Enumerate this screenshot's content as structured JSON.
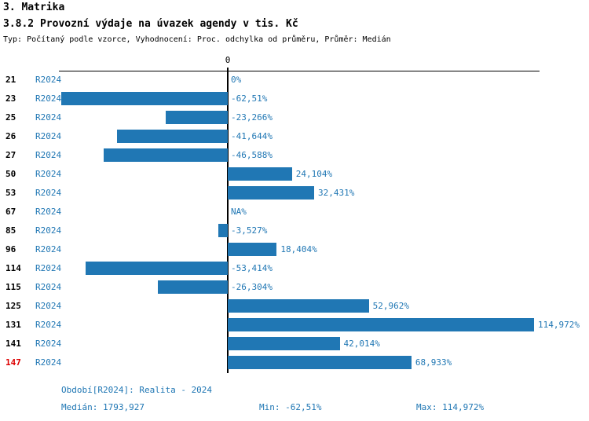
{
  "header": {
    "section": "3. Matrika",
    "title": "3.8.2 Provozní výdaje na úvazek agendy v tis. Kč",
    "subtitle": "Typ: Počítaný podle vzorce, Vyhodnocení: Proc. odchylka od průměru, Průměr: Medián"
  },
  "chart_data": {
    "type": "bar",
    "orientation": "horizontal",
    "value_unit": "%",
    "axis_zero_label": "0",
    "xlim": [
      -70,
      120
    ],
    "colors": {
      "bar": "#2077B4",
      "label": "#2077B4",
      "highlight": "#DD0000"
    },
    "rows": [
      {
        "id": "21",
        "period": "R2024",
        "value": 0,
        "label": "0%",
        "highlight": false
      },
      {
        "id": "23",
        "period": "R2024",
        "value": -62.51,
        "label": "-62,51%",
        "highlight": false
      },
      {
        "id": "25",
        "period": "R2024",
        "value": -23.266,
        "label": "-23,266%",
        "highlight": false
      },
      {
        "id": "26",
        "period": "R2024",
        "value": -41.644,
        "label": "-41,644%",
        "highlight": false
      },
      {
        "id": "27",
        "period": "R2024",
        "value": -46.588,
        "label": "-46,588%",
        "highlight": false
      },
      {
        "id": "50",
        "period": "R2024",
        "value": 24.104,
        "label": "24,104%",
        "highlight": false
      },
      {
        "id": "53",
        "period": "R2024",
        "value": 32.431,
        "label": "32,431%",
        "highlight": false
      },
      {
        "id": "67",
        "period": "R2024",
        "value": null,
        "label": "NA%",
        "highlight": false
      },
      {
        "id": "85",
        "period": "R2024",
        "value": -3.527,
        "label": "-3,527%",
        "highlight": false
      },
      {
        "id": "96",
        "period": "R2024",
        "value": 18.404,
        "label": "18,404%",
        "highlight": false
      },
      {
        "id": "114",
        "period": "R2024",
        "value": -53.414,
        "label": "-53,414%",
        "highlight": false
      },
      {
        "id": "115",
        "period": "R2024",
        "value": -26.304,
        "label": "-26,304%",
        "highlight": false
      },
      {
        "id": "125",
        "period": "R2024",
        "value": 52.962,
        "label": "52,962%",
        "highlight": false
      },
      {
        "id": "131",
        "period": "R2024",
        "value": 114.972,
        "label": "114,972%",
        "highlight": false
      },
      {
        "id": "141",
        "period": "R2024",
        "value": 42.014,
        "label": "42,014%",
        "highlight": false
      },
      {
        "id": "147",
        "period": "R2024",
        "value": 68.933,
        "label": "68,933%",
        "highlight": true
      }
    ]
  },
  "footer": {
    "period_line": "Období[R2024]: Realita - 2024",
    "median": "Medián: 1793,927",
    "min": "Min: -62,51%",
    "max": "Max: 114,972%"
  }
}
